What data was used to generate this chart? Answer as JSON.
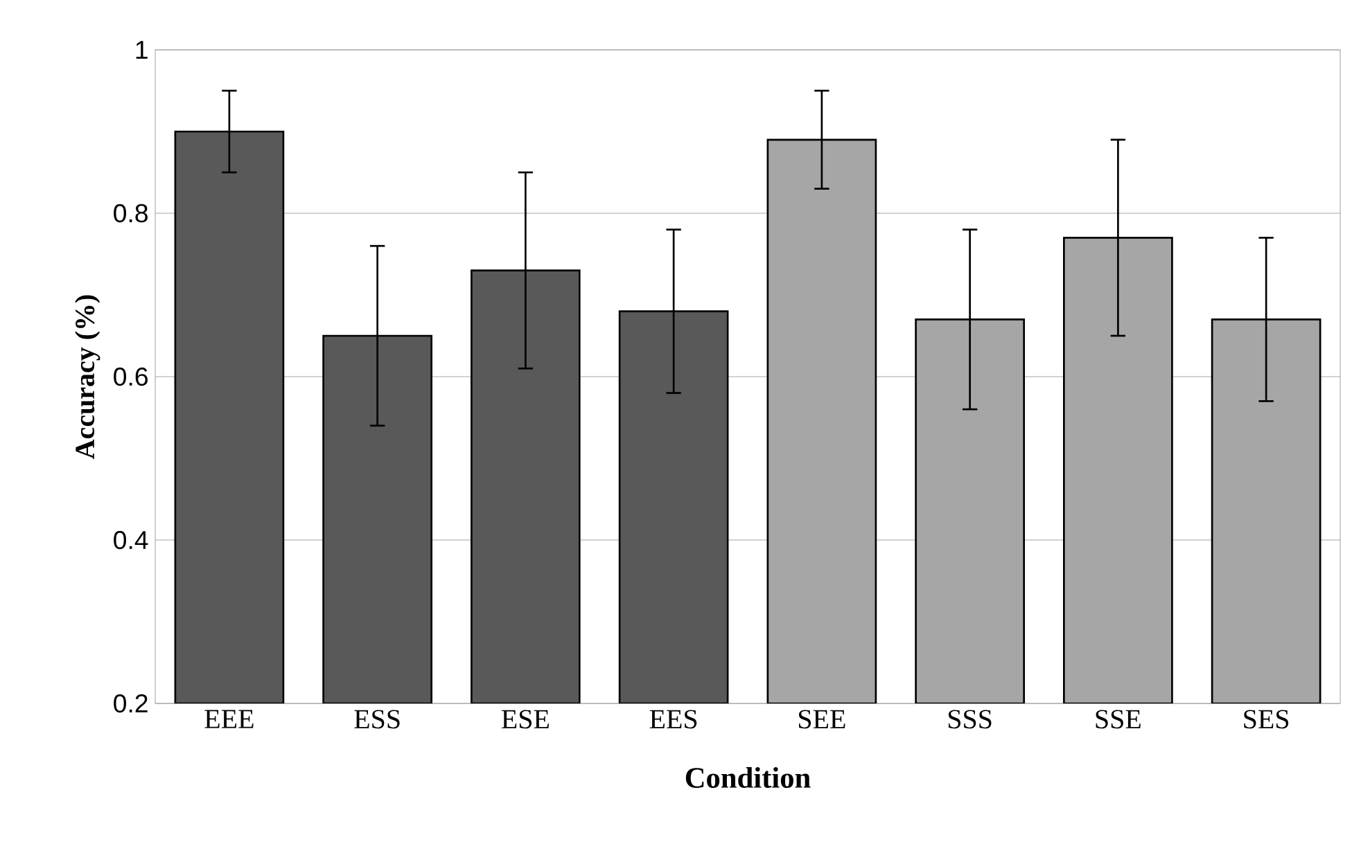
{
  "chart_data": {
    "type": "bar",
    "xlabel": "Condition",
    "ylabel": "Accuracy (%)",
    "categories": [
      "EEE",
      "ESS",
      "ESE",
      "EES",
      "SEE",
      "SSS",
      "SSE",
      "SES"
    ],
    "values": [
      0.9,
      0.65,
      0.73,
      0.68,
      0.89,
      0.67,
      0.77,
      0.67
    ],
    "errors": [
      0.05,
      0.11,
      0.12,
      0.1,
      0.06,
      0.11,
      0.12,
      0.1
    ],
    "colors": [
      "#595959",
      "#595959",
      "#595959",
      "#595959",
      "#a6a6a6",
      "#a6a6a6",
      "#a6a6a6",
      "#a6a6a6"
    ],
    "ylim": [
      0.2,
      1
    ],
    "yticks": [
      0.2,
      0.4,
      0.6,
      0.8,
      1
    ],
    "grid": "y"
  }
}
